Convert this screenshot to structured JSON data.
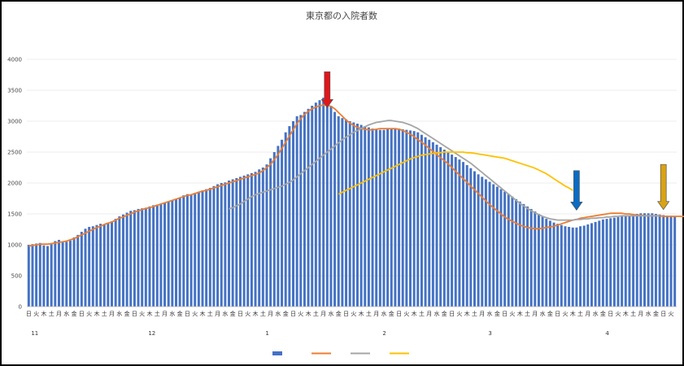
{
  "chart_data": {
    "type": "bar",
    "title": "東京都の入院者数",
    "xlabel": "",
    "ylabel": "",
    "ylim": [
      0,
      4000
    ],
    "yticks": [
      0,
      500,
      1000,
      1500,
      2000,
      2500,
      3000,
      3500,
      4000
    ],
    "grid": true,
    "legend_position": "bottom",
    "tick_pattern": [
      "日",
      "月",
      "火",
      "水",
      "木",
      "金",
      "土"
    ],
    "month_labels": [
      {
        "index": 0,
        "label": "11"
      },
      {
        "index": 31,
        "label": "12"
      },
      {
        "index": 62,
        "label": "1"
      },
      {
        "index": 93,
        "label": "2"
      },
      {
        "index": 121,
        "label": "3"
      },
      {
        "index": 152,
        "label": "4"
      }
    ],
    "series": [
      {
        "type": "bar",
        "color": "#4472C4",
        "values": [
          1000,
          1010,
          1020,
          1030,
          990,
          980,
          1010,
          1060,
          1080,
          1040,
          1050,
          1070,
          1120,
          1160,
          1210,
          1260,
          1290,
          1300,
          1320,
          1340,
          1330,
          1360,
          1380,
          1420,
          1460,
          1490,
          1520,
          1550,
          1560,
          1580,
          1590,
          1600,
          1620,
          1640,
          1650,
          1660,
          1680,
          1700,
          1720,
          1740,
          1760,
          1800,
          1820,
          1810,
          1840,
          1860,
          1880,
          1900,
          1920,
          1950,
          1980,
          2000,
          2010,
          2040,
          2060,
          2080,
          2100,
          2120,
          2140,
          2160,
          2180,
          2220,
          2250,
          2300,
          2400,
          2500,
          2600,
          2700,
          2820,
          2920,
          3000,
          3080,
          3100,
          3150,
          3200,
          3250,
          3300,
          3340,
          3380,
          3420,
          3250,
          3150,
          3080,
          3050,
          3030,
          3000,
          2980,
          2960,
          2940,
          2920,
          2900,
          2880,
          2870,
          2860,
          2860,
          2870,
          2880,
          2880,
          2880,
          2870,
          2860,
          2850,
          2840,
          2820,
          2780,
          2740,
          2700,
          2660,
          2620,
          2580,
          2540,
          2500,
          2460,
          2420,
          2380,
          2340,
          2290,
          2240,
          2190,
          2140,
          2100,
          2060,
          2020,
          1980,
          1940,
          1900,
          1860,
          1820,
          1780,
          1740,
          1700,
          1660,
          1620,
          1580,
          1540,
          1500,
          1460,
          1420,
          1390,
          1360,
          1340,
          1320,
          1300,
          1290,
          1280,
          1280,
          1300,
          1310,
          1330,
          1350,
          1370,
          1390,
          1410,
          1420,
          1430,
          1440,
          1450,
          1460,
          1470,
          1480,
          1490,
          1500,
          1510,
          1510,
          1510,
          1510,
          1500,
          1490,
          1480,
          1470,
          1470,
          1460
        ]
      },
      {
        "type": "line",
        "color": "#ED7D31",
        "values": [
          980,
          990,
          1000,
          1010,
          1010,
          1010,
          1020,
          1030,
          1040,
          1050,
          1060,
          1080,
          1100,
          1130,
          1160,
          1190,
          1220,
          1250,
          1280,
          1300,
          1330,
          1350,
          1370,
          1400,
          1430,
          1450,
          1480,
          1500,
          1530,
          1550,
          1570,
          1590,
          1600,
          1620,
          1640,
          1660,
          1680,
          1700,
          1720,
          1740,
          1760,
          1780,
          1800,
          1810,
          1830,
          1850,
          1870,
          1880,
          1900,
          1920,
          1940,
          1960,
          1980,
          2000,
          2020,
          2040,
          2060,
          2080,
          2100,
          2120,
          2140,
          2160,
          2200,
          2250,
          2300,
          2380,
          2460,
          2560,
          2660,
          2760,
          2860,
          2960,
          3040,
          3110,
          3160,
          3200,
          3230,
          3250,
          3260,
          3260,
          3240,
          3200,
          3140,
          3080,
          3020,
          2970,
          2930,
          2900,
          2880,
          2870,
          2860,
          2860,
          2870,
          2880,
          2880,
          2880,
          2880,
          2880,
          2870,
          2850,
          2820,
          2790,
          2750,
          2700,
          2660,
          2610,
          2560,
          2510,
          2460,
          2410,
          2360,
          2310,
          2250,
          2190,
          2130,
          2070,
          2010,
          1950,
          1890,
          1830,
          1770,
          1710,
          1650,
          1600,
          1550,
          1500,
          1450,
          1410,
          1380,
          1350,
          1320,
          1300,
          1280,
          1270,
          1260,
          1260,
          1270,
          1280,
          1290,
          1300,
          1320,
          1340,
          1360,
          1380,
          1400,
          1410,
          1430,
          1440,
          1450,
          1460,
          1470,
          1480,
          1490,
          1500,
          1510,
          1510,
          1510,
          1510,
          1500,
          1500,
          1490,
          1480,
          1480,
          1470,
          1470,
          1470,
          1470,
          1470,
          1460,
          1460,
          1460,
          1460,
          1460,
          1460,
          1460,
          1460,
          1460,
          1460,
          1460
        ]
      },
      {
        "type": "line",
        "color": "#A5A5A5",
        "start_index": 53,
        "values": [
          1580,
          1600,
          1630,
          1660,
          1700,
          1740,
          1780,
          1810,
          1830,
          1850,
          1870,
          1890,
          1910,
          1930,
          1950,
          1980,
          2010,
          2050,
          2100,
          2150,
          2200,
          2250,
          2300,
          2350,
          2400,
          2450,
          2500,
          2550,
          2600,
          2650,
          2700,
          2740,
          2780,
          2820,
          2850,
          2880,
          2910,
          2940,
          2960,
          2980,
          2990,
          3000,
          3010,
          3010,
          3000,
          2990,
          2980,
          2960,
          2940,
          2910,
          2880,
          2840,
          2800,
          2760,
          2720,
          2680,
          2640,
          2600,
          2560,
          2520,
          2480,
          2440,
          2400,
          2360,
          2320,
          2270,
          2220,
          2170,
          2120,
          2070,
          2020,
          1970,
          1920,
          1870,
          1820,
          1770,
          1720,
          1670,
          1630,
          1590,
          1550,
          1520,
          1490,
          1460,
          1440,
          1420,
          1410,
          1400,
          1400,
          1400,
          1400,
          1400,
          1410,
          1410,
          1420,
          1420,
          1430,
          1430,
          1440,
          1440,
          1450,
          1450,
          1460,
          1460,
          1470,
          1470,
          1470,
          1470,
          1470,
          1470,
          1470,
          1470,
          1470,
          1470,
          1470
        ]
      },
      {
        "type": "line",
        "color": "#FFC000",
        "start_index": 82,
        "values": [
          1820,
          1850,
          1880,
          1910,
          1940,
          1970,
          2000,
          2030,
          2060,
          2090,
          2120,
          2150,
          2180,
          2210,
          2240,
          2270,
          2300,
          2330,
          2360,
          2390,
          2410,
          2430,
          2450,
          2460,
          2470,
          2480,
          2490,
          2490,
          2500,
          2500,
          2500,
          2500,
          2500,
          2500,
          2490,
          2490,
          2480,
          2470,
          2460,
          2450,
          2440,
          2430,
          2420,
          2410,
          2400,
          2380,
          2360,
          2340,
          2320,
          2300,
          2280,
          2260,
          2240,
          2210,
          2180,
          2150,
          2110,
          2070,
          2030,
          1990,
          1950,
          1920,
          1880
        ]
      }
    ],
    "annotations": [
      {
        "type": "arrow-down",
        "color": "#E0161B",
        "index": 79,
        "y_top": 3800,
        "y_bottom": 3220
      },
      {
        "type": "arrow-down",
        "color": "#0B6CC4",
        "index": 145,
        "y_top": 2200,
        "y_bottom": 1560
      },
      {
        "type": "arrow-down",
        "color": "#D9A315",
        "index": 168,
        "y_top": 2300,
        "y_bottom": 1570
      }
    ]
  }
}
